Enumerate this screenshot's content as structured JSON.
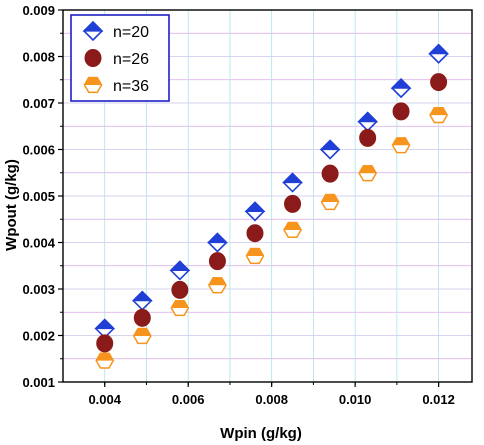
{
  "chart_data": {
    "type": "scatter",
    "xlabel": "Wpin (g/kg)",
    "ylabel": "Wpout (g/kg)",
    "xlim": [
      0.003,
      0.0128
    ],
    "ylim": [
      0.001,
      0.009
    ],
    "x_ticks": [
      "0.004",
      "0.006",
      "0.008",
      "0.010",
      "0.012"
    ],
    "y_ticks": [
      "0.001",
      "0.002",
      "0.003",
      "0.004",
      "0.005",
      "0.006",
      "0.007",
      "0.008",
      "0.009"
    ],
    "grid": true,
    "legend_position": "top-left",
    "x": [
      0.004,
      0.0049,
      0.0058,
      0.0067,
      0.0076,
      0.0085,
      0.0094,
      0.0103,
      0.0111,
      0.012
    ],
    "series": [
      {
        "name": "n=20",
        "marker": "half-filled-diamond",
        "color": "#1f3fd6",
        "values": [
          0.00215,
          0.00275,
          0.0034,
          0.004,
          0.00467,
          0.00529,
          0.006,
          0.0066,
          0.00732,
          0.00806
        ]
      },
      {
        "name": "n=26",
        "marker": "circle",
        "color": "#8b1a1a",
        "values": [
          0.00183,
          0.00238,
          0.00298,
          0.0036,
          0.0042,
          0.00483,
          0.00548,
          0.00625,
          0.00682,
          0.00745
        ]
      },
      {
        "name": "n=36",
        "marker": "half-filled-hexagon",
        "color": "#f7941d",
        "values": [
          0.00146,
          0.00199,
          0.00259,
          0.00308,
          0.00371,
          0.00427,
          0.00487,
          0.00549,
          0.00609,
          0.00674
        ]
      }
    ]
  }
}
